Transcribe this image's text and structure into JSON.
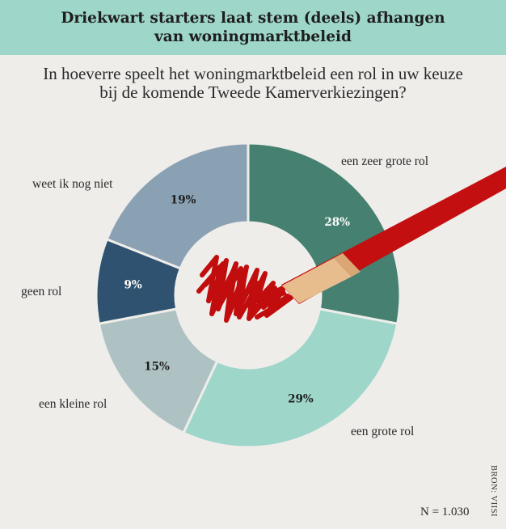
{
  "header": {
    "title_line1": "Driekwart starters laat stem (deels) afhangen",
    "title_line2": "van woningmarktbeleid"
  },
  "subtitle": {
    "line1": "In hoeverre speelt het woningmarktbeleid een rol in uw keuze",
    "line2": "bij de komende Tweede Kamerverkiezingen?"
  },
  "chart_data": {
    "type": "pie",
    "subtype": "donut",
    "categories": [
      "een zeer grote rol",
      "een grote rol",
      "een kleine rol",
      "geen rol",
      "weet ik nog niet"
    ],
    "values": [
      28,
      29,
      15,
      9,
      19
    ],
    "value_labels": [
      "28%",
      "29%",
      "15%",
      "9%",
      "19%"
    ],
    "colors": [
      "#458070",
      "#9ed6c9",
      "#aec2c3",
      "#2f5270",
      "#8aa1b4"
    ],
    "label_colors": [
      "#ffffff",
      "#1e1e1e",
      "#1e1e1e",
      "#ffffff",
      "#1e1e1e"
    ]
  },
  "footer": {
    "n": "N = 1.030",
    "source": "BRON: VIISI"
  }
}
